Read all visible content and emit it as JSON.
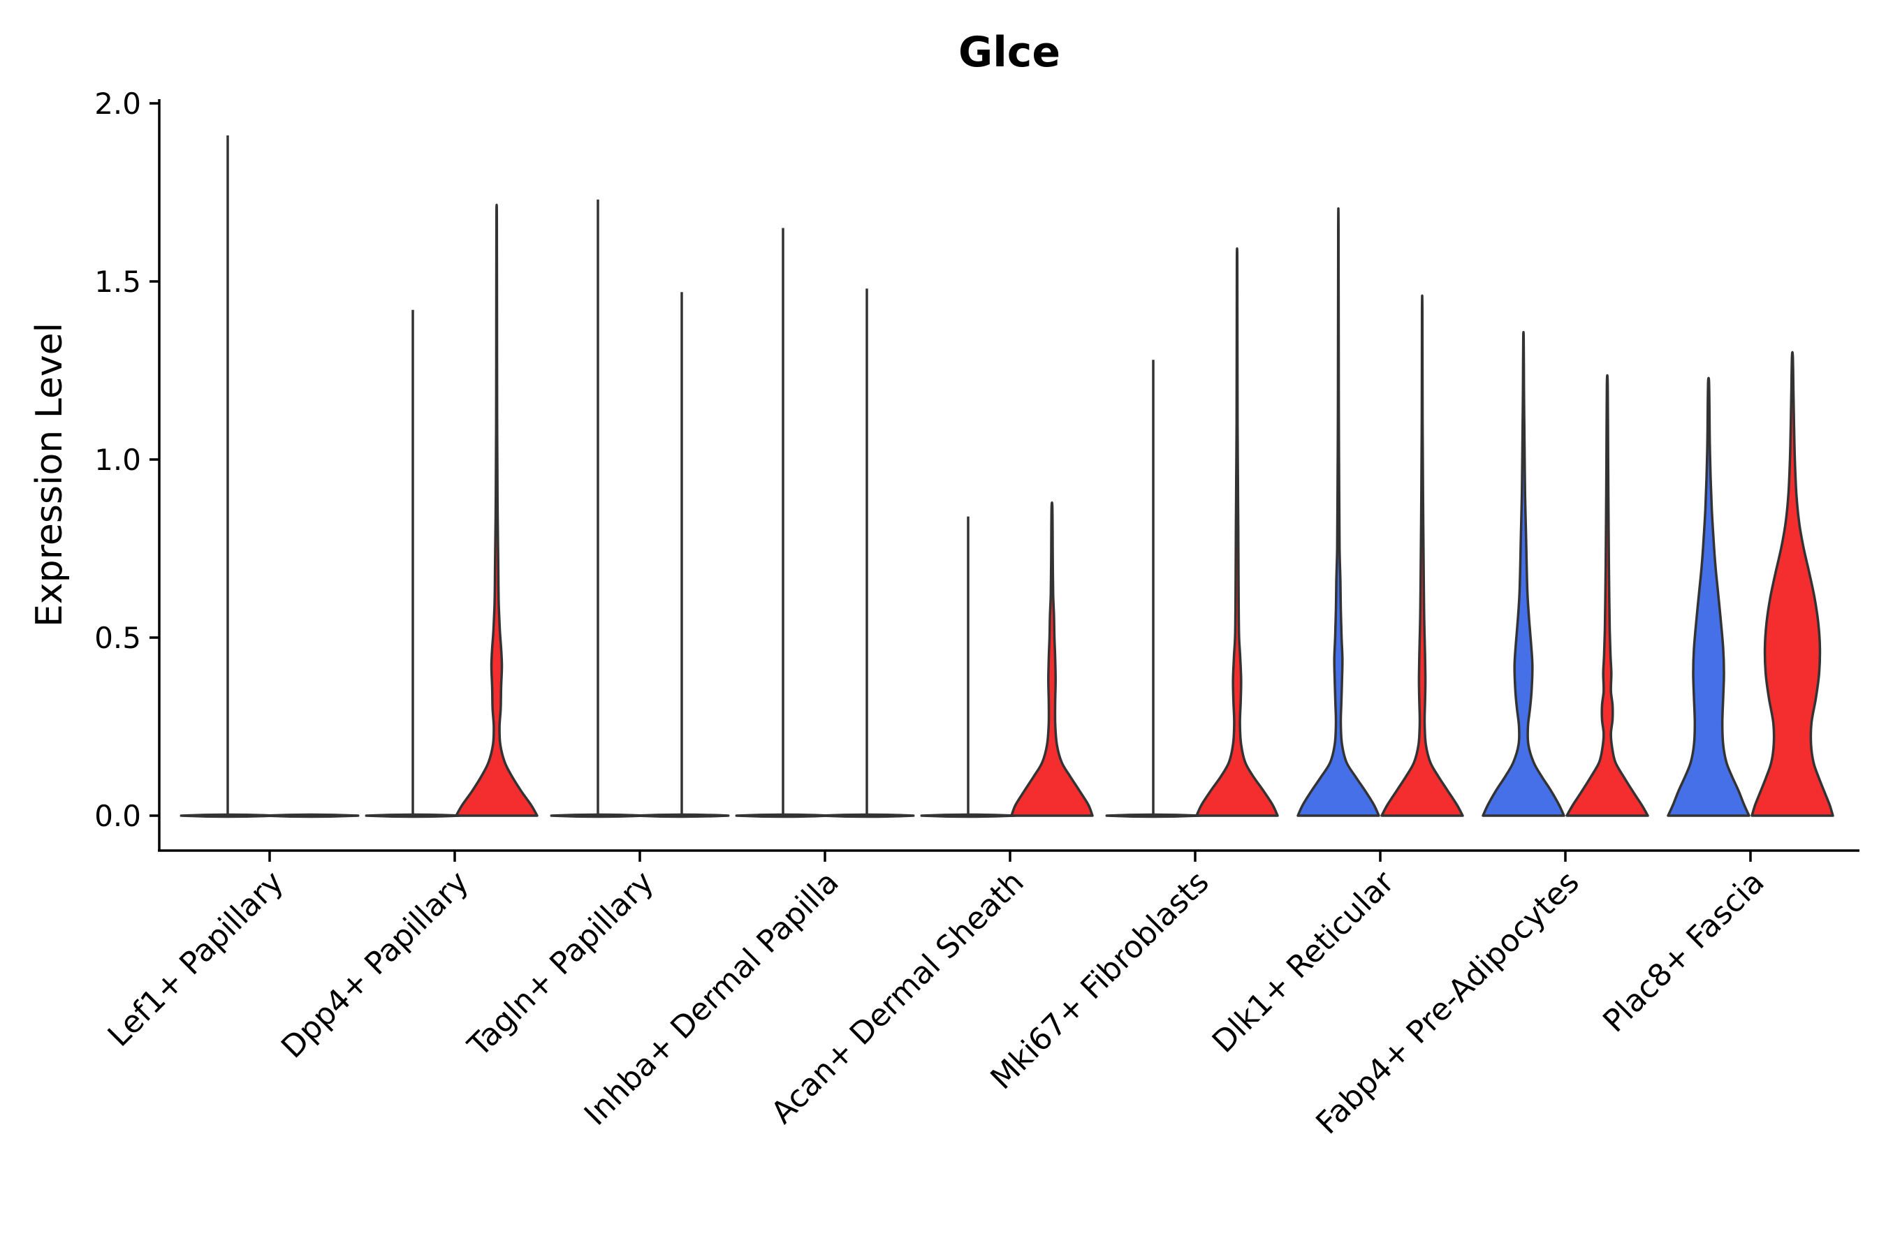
{
  "chart_data": {
    "type": "violin",
    "title": "Glce",
    "xlabel": "",
    "ylabel": "Expression Level",
    "ylim": [
      -0.1,
      2.0
    ],
    "yticks": [
      0.0,
      0.5,
      1.0,
      1.5,
      2.0
    ],
    "ytick_labels": [
      "0.0",
      "0.5",
      "1.0",
      "1.5",
      "2.0"
    ],
    "categories": [
      "Lef1+ Papillary",
      "Dpp4+ Papillary",
      "Tagln+ Papillary",
      "Inhba+ Dermal Papilla",
      "Acan+ Dermal Sheath",
      "Mki67+ Fibroblasts",
      "Dlk1+ Reticular",
      "Fabp4+ Pre-Adipocytes",
      "Plac8+ Fascia"
    ],
    "groups": [
      "left",
      "right"
    ],
    "colors": {
      "blue": "#4570e8",
      "red": "#f42e2e",
      "none": "#ffffff"
    },
    "violins": [
      {
        "category": "Lef1+ Papillary",
        "group": "left",
        "fill": "blue",
        "max": 1.91,
        "profile": [
          [
            0.0,
            0.0
          ]
        ]
      },
      {
        "category": "Lef1+ Papillary",
        "group": "right",
        "fill": "red",
        "max": 0.0,
        "profile": []
      },
      {
        "category": "Dpp4+ Papillary",
        "group": "left",
        "fill": "blue",
        "max": 1.42,
        "profile": [
          [
            0.0,
            0.0
          ]
        ]
      },
      {
        "category": "Dpp4+ Papillary",
        "group": "right",
        "fill": "red",
        "max": 1.68,
        "profile": [
          [
            0.0,
            1.0
          ],
          [
            0.03,
            0.85
          ],
          [
            0.07,
            0.6
          ],
          [
            0.11,
            0.38
          ],
          [
            0.15,
            0.2
          ],
          [
            0.2,
            0.09
          ],
          [
            0.25,
            0.07
          ],
          [
            0.3,
            0.1
          ],
          [
            0.36,
            0.11
          ],
          [
            0.42,
            0.13
          ],
          [
            0.47,
            0.11
          ],
          [
            0.52,
            0.08
          ],
          [
            0.6,
            0.05
          ],
          [
            0.7,
            0.04
          ],
          [
            0.8,
            0.03
          ],
          [
            0.9,
            0.02
          ],
          [
            1.1,
            0.012
          ],
          [
            1.4,
            0.008
          ],
          [
            1.68,
            0.005
          ]
        ]
      },
      {
        "category": "Tagln+ Papillary",
        "group": "left",
        "fill": "blue",
        "max": 1.73,
        "profile": [
          [
            0.0,
            0.0
          ]
        ]
      },
      {
        "category": "Tagln+ Papillary",
        "group": "right",
        "fill": "red",
        "max": 1.47,
        "profile": [
          [
            0.0,
            0.0
          ]
        ]
      },
      {
        "category": "Inhba+ Dermal Papilla",
        "group": "left",
        "fill": "blue",
        "max": 1.65,
        "profile": [
          [
            0.0,
            0.0
          ]
        ]
      },
      {
        "category": "Inhba+ Dermal Papilla",
        "group": "right",
        "fill": "red",
        "max": 1.48,
        "profile": [
          [
            0.0,
            0.0
          ]
        ]
      },
      {
        "category": "Acan+ Dermal Sheath",
        "group": "left",
        "fill": "blue",
        "max": 0.84,
        "profile": [
          [
            0.0,
            0.0
          ]
        ]
      },
      {
        "category": "Acan+ Dermal Sheath",
        "group": "right",
        "fill": "red",
        "max": 0.87,
        "profile": [
          [
            0.0,
            1.0
          ],
          [
            0.03,
            0.9
          ],
          [
            0.07,
            0.68
          ],
          [
            0.11,
            0.45
          ],
          [
            0.15,
            0.24
          ],
          [
            0.2,
            0.12
          ],
          [
            0.26,
            0.08
          ],
          [
            0.32,
            0.08
          ],
          [
            0.38,
            0.09
          ],
          [
            0.44,
            0.08
          ],
          [
            0.5,
            0.06
          ],
          [
            0.56,
            0.05
          ],
          [
            0.62,
            0.03
          ],
          [
            0.7,
            0.02
          ],
          [
            0.8,
            0.015
          ],
          [
            0.87,
            0.008
          ]
        ]
      },
      {
        "category": "Mki67+ Fibroblasts",
        "group": "left",
        "fill": "blue",
        "max": 1.28,
        "profile": [
          [
            0.0,
            0.0
          ]
        ]
      },
      {
        "category": "Mki67+ Fibroblasts",
        "group": "right",
        "fill": "red",
        "max": 1.56,
        "profile": [
          [
            0.0,
            1.0
          ],
          [
            0.03,
            0.88
          ],
          [
            0.07,
            0.65
          ],
          [
            0.11,
            0.4
          ],
          [
            0.15,
            0.2
          ],
          [
            0.2,
            0.1
          ],
          [
            0.26,
            0.07
          ],
          [
            0.32,
            0.09
          ],
          [
            0.38,
            0.1
          ],
          [
            0.44,
            0.08
          ],
          [
            0.5,
            0.05
          ],
          [
            0.58,
            0.04
          ],
          [
            0.68,
            0.035
          ],
          [
            0.8,
            0.03
          ],
          [
            0.95,
            0.02
          ],
          [
            1.1,
            0.012
          ],
          [
            1.3,
            0.008
          ],
          [
            1.56,
            0.005
          ]
        ]
      },
      {
        "category": "Dlk1+ Reticular",
        "group": "left",
        "fill": "blue",
        "max": 1.66,
        "profile": [
          [
            0.0,
            1.0
          ],
          [
            0.03,
            0.88
          ],
          [
            0.07,
            0.66
          ],
          [
            0.11,
            0.42
          ],
          [
            0.15,
            0.2
          ],
          [
            0.2,
            0.09
          ],
          [
            0.26,
            0.06
          ],
          [
            0.32,
            0.075
          ],
          [
            0.38,
            0.09
          ],
          [
            0.44,
            0.1
          ],
          [
            0.5,
            0.08
          ],
          [
            0.58,
            0.06
          ],
          [
            0.66,
            0.05
          ],
          [
            0.75,
            0.03
          ],
          [
            0.9,
            0.02
          ],
          [
            1.1,
            0.012
          ],
          [
            1.3,
            0.008
          ],
          [
            1.66,
            0.004
          ]
        ]
      },
      {
        "category": "Dlk1+ Reticular",
        "group": "right",
        "fill": "red",
        "max": 1.42,
        "profile": [
          [
            0.0,
            1.0
          ],
          [
            0.03,
            0.86
          ],
          [
            0.07,
            0.63
          ],
          [
            0.11,
            0.4
          ],
          [
            0.15,
            0.2
          ],
          [
            0.2,
            0.09
          ],
          [
            0.26,
            0.06
          ],
          [
            0.32,
            0.07
          ],
          [
            0.38,
            0.08
          ],
          [
            0.45,
            0.07
          ],
          [
            0.55,
            0.05
          ],
          [
            0.65,
            0.04
          ],
          [
            0.78,
            0.03
          ],
          [
            0.9,
            0.02
          ],
          [
            1.1,
            0.01
          ],
          [
            1.42,
            0.005
          ]
        ]
      },
      {
        "category": "Fabp4+ Pre-Adipocytes",
        "group": "left",
        "fill": "blue",
        "max": 1.34,
        "profile": [
          [
            0.0,
            1.0
          ],
          [
            0.03,
            0.88
          ],
          [
            0.07,
            0.68
          ],
          [
            0.11,
            0.45
          ],
          [
            0.15,
            0.25
          ],
          [
            0.2,
            0.12
          ],
          [
            0.25,
            0.11
          ],
          [
            0.3,
            0.16
          ],
          [
            0.35,
            0.2
          ],
          [
            0.42,
            0.22
          ],
          [
            0.48,
            0.19
          ],
          [
            0.55,
            0.14
          ],
          [
            0.62,
            0.1
          ],
          [
            0.7,
            0.08
          ],
          [
            0.8,
            0.06
          ],
          [
            0.9,
            0.04
          ],
          [
            1.0,
            0.03
          ],
          [
            1.1,
            0.02
          ],
          [
            1.2,
            0.012
          ],
          [
            1.34,
            0.006
          ]
        ]
      },
      {
        "category": "Fabp4+ Pre-Adipocytes",
        "group": "right",
        "fill": "red",
        "max": 1.21,
        "profile": [
          [
            0.0,
            1.0
          ],
          [
            0.03,
            0.85
          ],
          [
            0.07,
            0.62
          ],
          [
            0.11,
            0.4
          ],
          [
            0.15,
            0.2
          ],
          [
            0.19,
            0.12
          ],
          [
            0.23,
            0.09
          ],
          [
            0.27,
            0.13
          ],
          [
            0.31,
            0.13
          ],
          [
            0.35,
            0.09
          ],
          [
            0.4,
            0.1
          ],
          [
            0.45,
            0.08
          ],
          [
            0.52,
            0.06
          ],
          [
            0.6,
            0.05
          ],
          [
            0.7,
            0.04
          ],
          [
            0.85,
            0.03
          ],
          [
            1.0,
            0.02
          ],
          [
            1.21,
            0.01
          ]
        ]
      },
      {
        "category": "Plac8+ Fascia",
        "group": "left",
        "fill": "blue",
        "max": 1.22,
        "profile": [
          [
            0.0,
            1.0
          ],
          [
            0.03,
            0.88
          ],
          [
            0.07,
            0.74
          ],
          [
            0.11,
            0.58
          ],
          [
            0.15,
            0.44
          ],
          [
            0.2,
            0.36
          ],
          [
            0.26,
            0.34
          ],
          [
            0.33,
            0.36
          ],
          [
            0.4,
            0.38
          ],
          [
            0.47,
            0.36
          ],
          [
            0.55,
            0.3
          ],
          [
            0.62,
            0.24
          ],
          [
            0.7,
            0.17
          ],
          [
            0.78,
            0.12
          ],
          [
            0.86,
            0.08
          ],
          [
            0.95,
            0.05
          ],
          [
            1.05,
            0.03
          ],
          [
            1.15,
            0.02
          ],
          [
            1.22,
            0.01
          ]
        ]
      },
      {
        "category": "Plac8+ Fascia",
        "group": "right",
        "fill": "red",
        "max": 1.29,
        "profile": [
          [
            0.0,
            1.0
          ],
          [
            0.03,
            0.92
          ],
          [
            0.07,
            0.78
          ],
          [
            0.11,
            0.64
          ],
          [
            0.15,
            0.52
          ],
          [
            0.2,
            0.46
          ],
          [
            0.26,
            0.47
          ],
          [
            0.33,
            0.58
          ],
          [
            0.4,
            0.66
          ],
          [
            0.47,
            0.68
          ],
          [
            0.54,
            0.64
          ],
          [
            0.61,
            0.55
          ],
          [
            0.68,
            0.42
          ],
          [
            0.75,
            0.28
          ],
          [
            0.82,
            0.17
          ],
          [
            0.9,
            0.1
          ],
          [
            1.0,
            0.06
          ],
          [
            1.1,
            0.04
          ],
          [
            1.2,
            0.025
          ],
          [
            1.29,
            0.01
          ]
        ]
      }
    ]
  }
}
